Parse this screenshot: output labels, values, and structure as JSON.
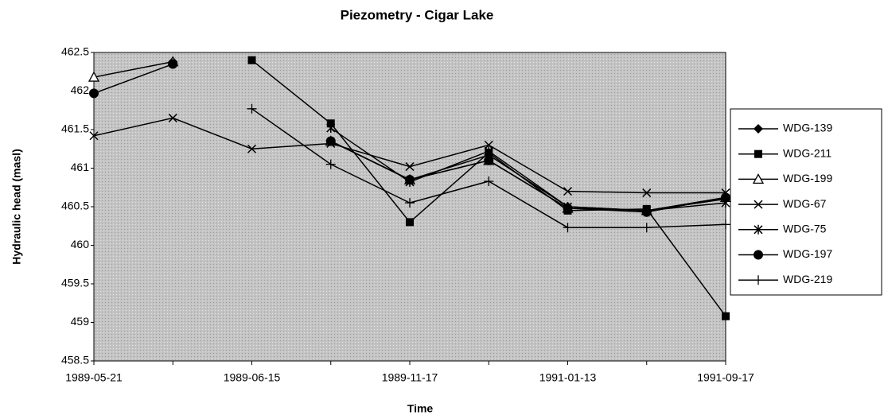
{
  "chart_data": {
    "type": "line",
    "title": "Piezometry - Cigar Lake",
    "x_label": "Time",
    "y_label": "Hydraulic head (masl)",
    "categories": [
      "1989-05-21",
      null,
      "1989-06-15",
      null,
      "1989-11-17",
      null,
      "1991-01-13",
      null,
      "1991-09-17"
    ],
    "ylim": [
      458.5,
      462.5
    ],
    "yticks": [
      458.5,
      459,
      459.5,
      460,
      460.5,
      461,
      461.5,
      462,
      462.5
    ],
    "legend": "right",
    "series": [
      {
        "name": "WDG-139",
        "color": "#000000",
        "marker": "diamond",
        "values": [
          null,
          462.38,
          null,
          461.35,
          460.85,
          461.17,
          460.5,
          460.45,
          460.6
        ]
      },
      {
        "name": "WDG-211",
        "color": "#000000",
        "marker": "square",
        "values": [
          null,
          null,
          462.4,
          461.58,
          460.3,
          461.2,
          460.45,
          460.47,
          459.08
        ]
      },
      {
        "name": "WDG-199",
        "color": "#000000",
        "marker": "triangle",
        "values": [
          462.18,
          462.38,
          null,
          461.35,
          460.85,
          461.1,
          460.48,
          460.45,
          460.62
        ]
      },
      {
        "name": "WDG-67",
        "color": "#000000",
        "marker": "x",
        "values": [
          461.42,
          461.65,
          461.25,
          461.32,
          461.02,
          461.3,
          460.7,
          460.68,
          460.68
        ]
      },
      {
        "name": "WDG-75",
        "color": "#000000",
        "marker": "star",
        "values": [
          null,
          null,
          null,
          461.52,
          460.82,
          461.22,
          460.5,
          460.45,
          460.55
        ]
      },
      {
        "name": "WDG-197",
        "color": "#000000",
        "marker": "circle",
        "values": [
          461.97,
          462.35,
          null,
          461.35,
          460.85,
          461.1,
          460.48,
          460.43,
          460.62
        ]
      },
      {
        "name": "WDG-219",
        "color": "#000000",
        "marker": "plus",
        "values": [
          null,
          null,
          461.77,
          461.05,
          460.55,
          460.83,
          460.23,
          460.23,
          460.27
        ]
      }
    ]
  }
}
